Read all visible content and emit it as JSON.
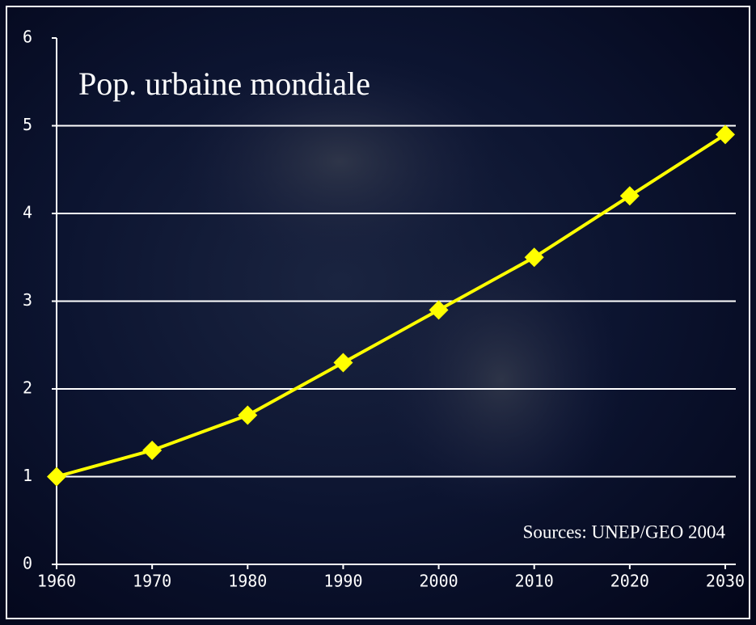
{
  "chart_data": {
    "type": "line",
    "title": "Pop. urbaine mondiale",
    "annotation": "Sources: UNEP/GEO 2004",
    "x": [
      1960,
      1970,
      1980,
      1990,
      2000,
      2010,
      2020,
      2030
    ],
    "values": [
      1,
      1.3,
      1.7,
      2.3,
      2.9,
      3.5,
      4.2,
      4.9
    ],
    "color": "#ffff00",
    "xlim": [
      1960,
      2030
    ],
    "xticks": [
      1960,
      1970,
      1980,
      1990,
      2000,
      2010,
      2020,
      2030
    ],
    "ylim": [
      0,
      6
    ],
    "yticks": [
      0,
      1,
      2,
      3,
      4,
      5,
      6
    ],
    "grid": true
  }
}
